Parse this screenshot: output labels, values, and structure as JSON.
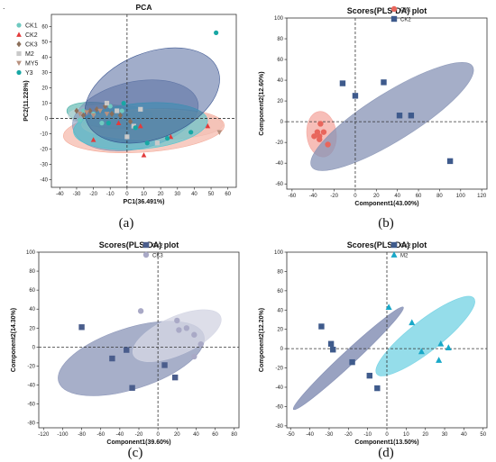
{
  "page": {
    "mark": "."
  },
  "captions": [
    "(a)",
    "(b)",
    "(c)",
    "(d)"
  ],
  "chart_data": [
    {
      "type": "scatter",
      "title": "PCA",
      "xlabel": "PC1(36.491%)",
      "ylabel": "PC2(11.228%)",
      "xlim": [
        -45,
        65
      ],
      "ylim": [
        -45,
        68
      ],
      "xticks": [
        -40,
        -30,
        -20,
        -10,
        0,
        10,
        20,
        30,
        40,
        50,
        60
      ],
      "yticks": [
        -40,
        -30,
        -20,
        -10,
        0,
        10,
        20,
        30,
        40,
        50,
        60
      ],
      "grid": false,
      "legend": "top-left",
      "series": [
        {
          "name": "CK1",
          "marker": "circle",
          "color": "#6fc9c0",
          "points": [
            [
              -26,
              5
            ],
            [
              -28,
              -1
            ],
            [
              -20,
              3
            ],
            [
              -10,
              8
            ],
            [
              -3,
              5
            ],
            [
              -15,
              -3
            ]
          ],
          "ellipse": {
            "cx": -14,
            "cy": 2,
            "rx": 22,
            "ry": 8,
            "rot": 8,
            "color": "#3aa89e",
            "opacity": 0.55
          }
        },
        {
          "name": "CK2",
          "marker": "triangle",
          "color": "#e23b3b",
          "points": [
            [
              -20,
              -14
            ],
            [
              8,
              -5
            ],
            [
              10,
              -24
            ],
            [
              26,
              -12
            ],
            [
              48,
              -5
            ],
            [
              -5,
              -3
            ]
          ],
          "ellipse": {
            "cx": 10,
            "cy": -8,
            "rx": 48,
            "ry": 14,
            "rot": -4,
            "color": "#f3a390",
            "opacity": 0.55
          }
        },
        {
          "name": "CK3",
          "marker": "diamond",
          "color": "#8b6f5a",
          "points": [
            [
              -30,
              5
            ],
            [
              -26,
              2
            ],
            [
              -22,
              5
            ],
            [
              -18,
              6
            ],
            [
              -13,
              8
            ],
            [
              -9,
              3
            ],
            [
              -4,
              2
            ],
            [
              2,
              -2
            ]
          ],
          "ellipse": {
            "cx": -10,
            "cy": 2,
            "rx": 25,
            "ry": 7,
            "rot": 0,
            "color": "#c4d6d8",
            "opacity": 0.6
          }
        },
        {
          "name": "M2",
          "marker": "square",
          "color": "#c9c9c9",
          "points": [
            [
              -12,
              10
            ],
            [
              -6,
              5
            ],
            [
              0,
              -12
            ],
            [
              4,
              -5
            ],
            [
              8,
              6
            ],
            [
              18,
              -16
            ]
          ],
          "ellipse": {
            "cx": 5,
            "cy": 2,
            "rx": 38,
            "ry": 22,
            "rot": -12,
            "color": "#7b8fb6",
            "opacity": 0.55
          }
        },
        {
          "name": "MY5",
          "marker": "triangle-down",
          "color": "#b8917f",
          "points": [
            [
              -28,
              3
            ],
            [
              -24,
              4
            ],
            [
              -20,
              2
            ],
            [
              -16,
              5
            ],
            [
              -12,
              3
            ],
            [
              55,
              -9
            ]
          ],
          "ellipse": {
            "cx": 15,
            "cy": -4,
            "rx": 42,
            "ry": 10,
            "rot": 0,
            "color": "#f0b9ae",
            "opacity": 0.5
          }
        },
        {
          "name": "Y3",
          "marker": "circle",
          "color": "#18a7a4",
          "points": [
            [
              -11,
              -3
            ],
            [
              -2,
              10
            ],
            [
              5,
              -6
            ],
            [
              12,
              -16
            ],
            [
              24,
              -13
            ],
            [
              38,
              -9
            ],
            [
              53,
              56
            ]
          ],
          "ellipse": {
            "cx": 8,
            "cy": -5,
            "rx": 40,
            "ry": 15,
            "rot": -5,
            "color": "#3cc6d4",
            "opacity": 0.55
          }
        },
        {
          "name": "",
          "marker": "none",
          "color": "#1c2c64",
          "points": [],
          "ellipse": {
            "cx": 15,
            "cy": 15,
            "rx": 42,
            "ry": 28,
            "rot": -22,
            "color": "#2f4a8a",
            "opacity": 0.45
          }
        }
      ]
    },
    {
      "type": "scatter",
      "title": "Scores(PLS-DA) plot",
      "xlabel": "Component1(43.00%)",
      "ylabel": "Component2(12.60%)",
      "xlim": [
        -65,
        125
      ],
      "ylim": [
        -65,
        100
      ],
      "xticks": [
        -60,
        -40,
        -20,
        0,
        20,
        40,
        60,
        80,
        100,
        120
      ],
      "yticks": [
        -60,
        -40,
        -20,
        0,
        20,
        40,
        60,
        80,
        100
      ],
      "grid": false,
      "legend": "top-right",
      "series": [
        {
          "name": "CK1",
          "marker": "circle",
          "color": "#e8665c",
          "points": [
            [
              -39,
              -14
            ],
            [
              -36,
              -10
            ],
            [
              -34,
              -17
            ],
            [
              -33,
              -2
            ],
            [
              -30,
              -10
            ],
            [
              -26,
              -22
            ],
            [
              -34,
              -14
            ]
          ],
          "ellipse": {
            "cx": -32,
            "cy": -12,
            "rx": 14,
            "ry": 22,
            "rot": -6,
            "color": "#f4a29a",
            "opacity": 0.7
          }
        },
        {
          "name": "CK2",
          "marker": "square",
          "color": "#3e5a8c",
          "points": [
            [
              -12,
              37
            ],
            [
              0,
              25
            ],
            [
              27,
              38
            ],
            [
              42,
              6
            ],
            [
              53,
              6
            ],
            [
              90,
              -38
            ]
          ],
          "ellipse": {
            "cx": 35,
            "cy": 5,
            "rx": 90,
            "ry": 23,
            "rot": -32,
            "color": "#8793b5",
            "opacity": 0.75
          }
        }
      ]
    },
    {
      "type": "scatter",
      "title": "Scores(PLS-DA) plot",
      "xlabel": "Component1(39.60%)",
      "ylabel": "Component2(14.30%)",
      "xlim": [
        -125,
        85
      ],
      "ylim": [
        -85,
        100
      ],
      "xticks": [
        -120,
        -100,
        -80,
        -60,
        -40,
        -20,
        0,
        20,
        40,
        60,
        80
      ],
      "yticks": [
        -80,
        -60,
        -40,
        -20,
        0,
        20,
        40,
        60,
        80,
        100
      ],
      "grid": false,
      "legend": "top-right",
      "series": [
        {
          "name": "CK2",
          "marker": "square",
          "color": "#4a5d8c",
          "points": [
            [
              -80,
              21
            ],
            [
              -48,
              -12
            ],
            [
              -33,
              -3
            ],
            [
              -27,
              -43
            ],
            [
              7,
              -19
            ],
            [
              18,
              -32
            ]
          ],
          "ellipse": {
            "cx": -28,
            "cy": -12,
            "rx": 80,
            "ry": 32,
            "rot": -18,
            "color": "#8a94b7",
            "opacity": 0.75
          }
        },
        {
          "name": "CK3",
          "marker": "circle",
          "color": "#a9a9c6",
          "points": [
            [
              -18,
              38
            ],
            [
              20,
              28
            ],
            [
              22,
              18
            ],
            [
              30,
              20
            ],
            [
              38,
              13
            ],
            [
              38,
              -10
            ],
            [
              45,
              3
            ]
          ],
          "ellipse": {
            "cx": 20,
            "cy": 12,
            "rx": 50,
            "ry": 20,
            "rot": -24,
            "color": "#d4d6e4",
            "opacity": 0.8
          }
        }
      ]
    },
    {
      "type": "scatter",
      "title": "Scores(PLS-DA) plot",
      "xlabel": "Component1(13.50%)",
      "ylabel": "Component2(12.20%)",
      "xlim": [
        -52,
        52
      ],
      "ylim": [
        -82,
        100
      ],
      "xticks": [
        -50,
        -40,
        -30,
        -20,
        -10,
        0,
        10,
        20,
        30,
        40,
        50
      ],
      "yticks": [
        -80,
        -60,
        -40,
        -20,
        0,
        20,
        40,
        60,
        80,
        100
      ],
      "grid": false,
      "legend": "top-right",
      "series": [
        {
          "name": "CK2",
          "marker": "square",
          "color": "#3f5b8c",
          "points": [
            [
              -34,
              23
            ],
            [
              -29,
              5
            ],
            [
              -28,
              -1
            ],
            [
              -18,
              -14
            ],
            [
              -9,
              -28
            ],
            [
              -5,
              -41
            ]
          ],
          "ellipse": {
            "cx": -20,
            "cy": -10,
            "rx": 39,
            "ry": 7,
            "rot": -43,
            "color": "#7f8bb1",
            "opacity": 0.8
          }
        },
        {
          "name": "M2",
          "marker": "triangle",
          "color": "#19a8c8",
          "points": [
            [
              1,
              43
            ],
            [
              13,
              27
            ],
            [
              18,
              -3
            ],
            [
              27,
              -12
            ],
            [
              28,
              5
            ],
            [
              32,
              1
            ]
          ],
          "ellipse": {
            "cx": 20,
            "cy": 13,
            "rx": 32,
            "ry": 16,
            "rot": -38,
            "color": "#72d1e3",
            "opacity": 0.75
          }
        }
      ]
    }
  ]
}
